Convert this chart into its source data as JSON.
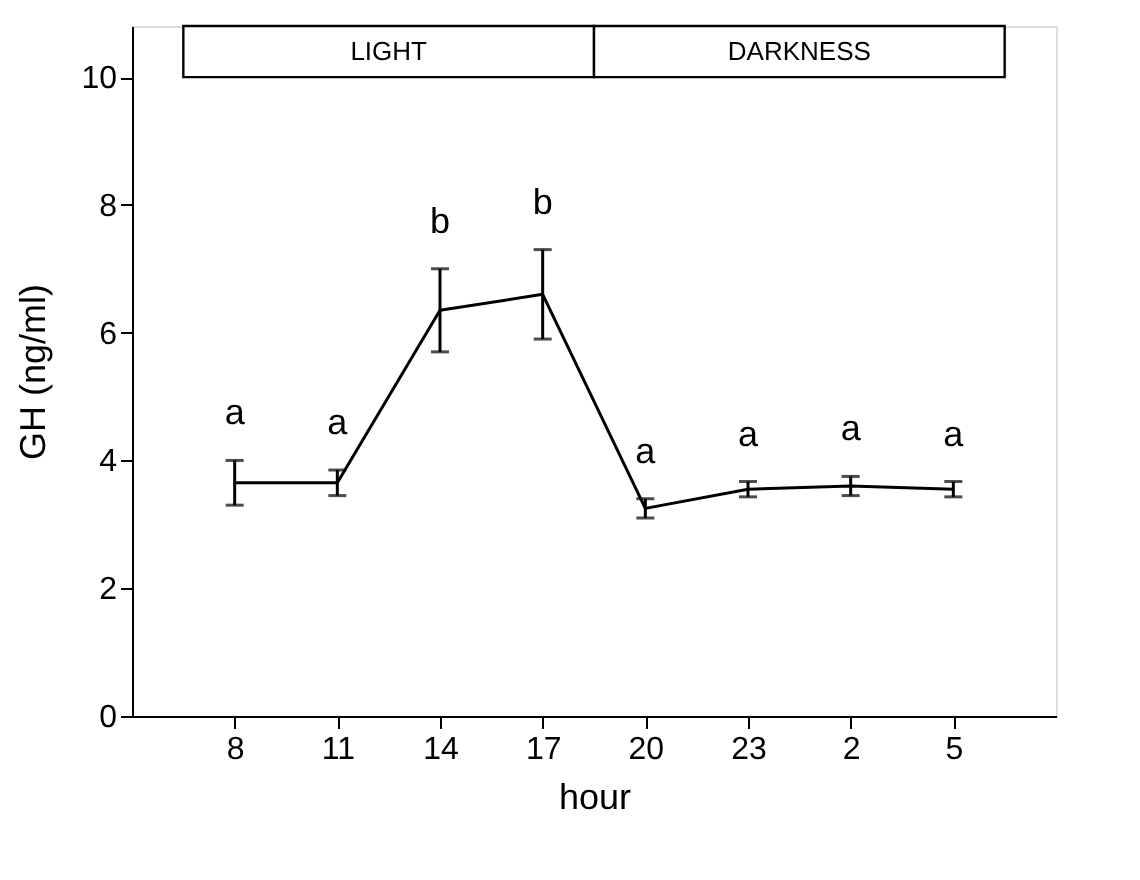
{
  "chart_data": {
    "type": "line",
    "xlabel": "hour",
    "ylabel": "GH  (ng/ml)",
    "categories": [
      "8",
      "11",
      "14",
      "17",
      "20",
      "23",
      "2",
      "5"
    ],
    "series": [
      {
        "color": "#000000",
        "values": [
          3.65,
          3.65,
          6.35,
          6.6,
          3.25,
          3.55,
          3.6,
          3.55
        ],
        "errors": [
          0.35,
          0.2,
          0.65,
          0.7,
          0.15,
          0.12,
          0.15,
          0.12
        ]
      }
    ],
    "ylim": [
      0,
      10.8
    ],
    "yticks": [
      0,
      2,
      4,
      6,
      8,
      10
    ],
    "bands": [
      {
        "axis": "x",
        "from": "8",
        "to": "17",
        "label": "LIGHT",
        "color": "#ffffff"
      },
      {
        "axis": "x",
        "from": "20",
        "to": "5",
        "label": "DARKNESS",
        "color": "#ffffff"
      }
    ],
    "annotations": [
      {
        "text": "a",
        "x": "8",
        "y": 3.65
      },
      {
        "text": "a",
        "x": "11",
        "y": 3.65
      },
      {
        "text": "b",
        "x": "14",
        "y": 6.35
      },
      {
        "text": "b",
        "x": "17",
        "y": 6.6
      },
      {
        "text": "a",
        "x": "20",
        "y": 3.25
      },
      {
        "text": "a",
        "x": "23",
        "y": 3.55
      },
      {
        "text": "a",
        "x": "2",
        "y": 3.6
      },
      {
        "text": "a",
        "x": "5",
        "y": 3.55
      }
    ],
    "grid": false
  }
}
